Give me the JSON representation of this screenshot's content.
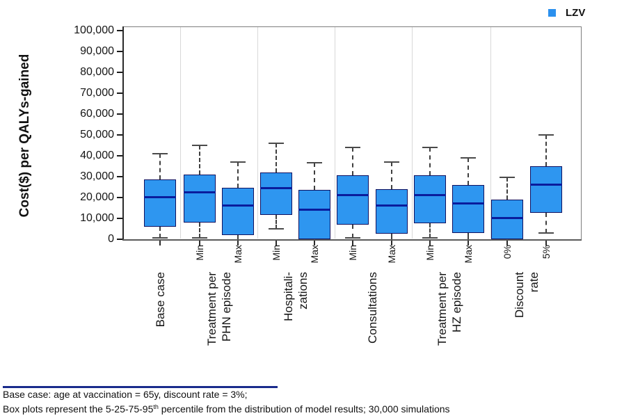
{
  "legend": {
    "label": "LZV",
    "marker_color": "#2B90EE"
  },
  "colors": {
    "box_fill": "#2E96F0",
    "box_border": "#10105E",
    "median": "#0A1C9C",
    "whisker": "#3F3F3F",
    "cap": "#4A4A4A",
    "plot_border": "#7D7D7D",
    "divider": "#D8D8D8",
    "axis": "#2A2A2A",
    "tick": "#1A1A1A",
    "footer_rule": "#1A2B8C"
  },
  "y_axis": {
    "title": "Cost($) per QALYs-gained",
    "tick_values": [
      0,
      10000,
      20000,
      30000,
      40000,
      50000,
      60000,
      70000,
      80000,
      90000,
      100000
    ],
    "tick_labels": [
      "0",
      "10,000",
      "20,000",
      "30,000",
      "40,000",
      "50,000",
      "60,000",
      "70,000",
      "80,000",
      "90,000",
      "100,000"
    ]
  },
  "footer": {
    "line1": "Base case: age at vaccination = 65y, discount rate = 3%;",
    "line2_prefix": "Box plots represent the 5-25-75-95",
    "line2_sup": "th",
    "line2_suffix": "  percentile from the distribution of model results; 30,000 simulations"
  },
  "chart_data": {
    "type": "boxplot",
    "title": "",
    "ylabel": "Cost($) per QALYs-gained",
    "ylim": [
      0,
      100000
    ],
    "ytick_step": 10000,
    "grid": false,
    "legend_position": "top-right",
    "legend": [
      "LZV"
    ],
    "percentiles_shown": [
      5,
      25,
      50,
      75,
      95
    ],
    "groups": [
      {
        "label_lines": [
          "Base case"
        ],
        "boxes": [
          {
            "sublabel": "",
            "p5": 500,
            "q1": 6000,
            "median": 20000,
            "q3": 28500,
            "p95": 41000
          }
        ]
      },
      {
        "label_lines": [
          "Treatment per",
          "PHN episode"
        ],
        "boxes": [
          {
            "sublabel": "Min",
            "p5": 500,
            "q1": 8000,
            "median": 22500,
            "q3": 31000,
            "p95": 45000
          },
          {
            "sublabel": "Max",
            "p5": 0,
            "q1": 2000,
            "median": 16000,
            "q3": 24500,
            "p95": 37000
          }
        ]
      },
      {
        "label_lines": [
          "Hospitali-",
          "zations"
        ],
        "boxes": [
          {
            "sublabel": "Min",
            "p5": 5000,
            "q1": 11500,
            "median": 24500,
            "q3": 32000,
            "p95": 46000
          },
          {
            "sublabel": "Max",
            "p5": 0,
            "q1": 0,
            "median": 14000,
            "q3": 23500,
            "p95": 36500
          }
        ]
      },
      {
        "label_lines": [
          "Consultations"
        ],
        "boxes": [
          {
            "sublabel": "Min",
            "p5": 500,
            "q1": 7000,
            "median": 21000,
            "q3": 30500,
            "p95": 44000
          },
          {
            "sublabel": "Max",
            "p5": 0,
            "q1": 2500,
            "median": 16000,
            "q3": 24000,
            "p95": 37000
          }
        ]
      },
      {
        "label_lines": [
          "Treatment per",
          "HZ episode"
        ],
        "boxes": [
          {
            "sublabel": "Min",
            "p5": 500,
            "q1": 7500,
            "median": 21000,
            "q3": 30500,
            "p95": 44000
          },
          {
            "sublabel": "Max",
            "p5": 0,
            "q1": 3000,
            "median": 17000,
            "q3": 26000,
            "p95": 39000
          }
        ]
      },
      {
        "label_lines": [
          "Discount",
          "rate"
        ],
        "boxes": [
          {
            "sublabel": "0%",
            "p5": 0,
            "q1": 0,
            "median": 10000,
            "q3": 19000,
            "p95": 29500
          },
          {
            "sublabel": "5%",
            "p5": 3000,
            "q1": 12500,
            "median": 26000,
            "q3": 35000,
            "p95": 50000
          }
        ]
      }
    ]
  }
}
